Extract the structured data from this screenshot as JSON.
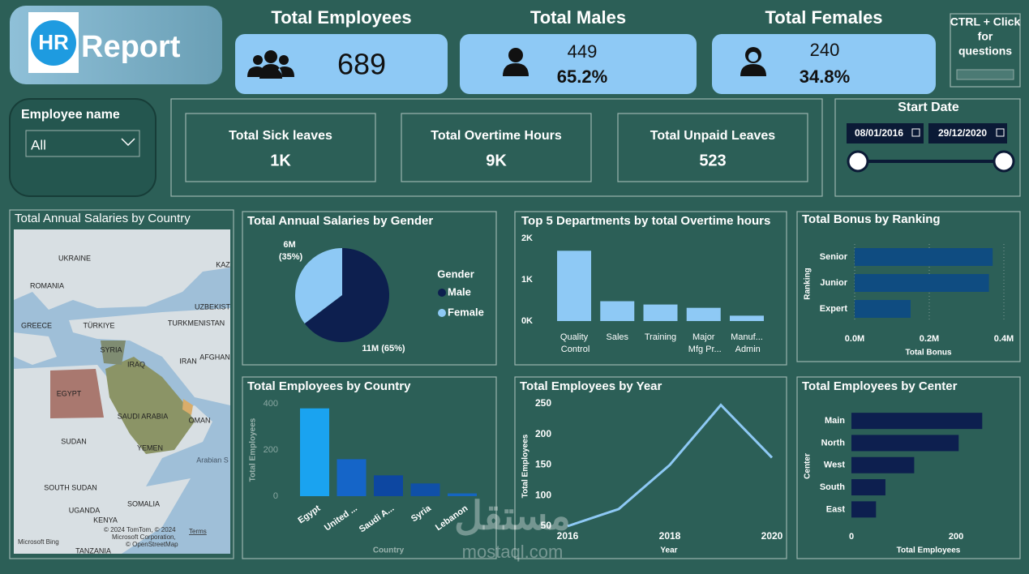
{
  "header": {
    "logo": "HR",
    "title": "Report"
  },
  "kpis": [
    {
      "title": "Total Employees",
      "value": 689
    },
    {
      "title": "Total Males",
      "value": 449,
      "percent": "65.2%"
    },
    {
      "title": "Total Females",
      "value": 240,
      "percent": "34.8%"
    }
  ],
  "help_button": {
    "lines": [
      "CTRL + Click",
      "for",
      "questions"
    ]
  },
  "slicer": {
    "label": "Employee name",
    "value": "All"
  },
  "cards": [
    {
      "title": "Total Sick leaves",
      "value": "1K"
    },
    {
      "title": "Total Overtime Hours",
      "value": "9K"
    },
    {
      "title": "Total Unpaid Leaves",
      "value": 523
    }
  ],
  "date_range": {
    "label": "Start Date",
    "start": "08/01/2016",
    "end": "29/12/2020"
  },
  "map": {
    "title": "Total Annual Salaries by Country",
    "labels": [
      "UKRAINE",
      "ROMANIA",
      "KAZ",
      "UZBEKIST",
      "GREECE",
      "TÜRKIYE",
      "TURKMENISTAN",
      "SYRIA",
      "IRAQ",
      "IRAN",
      "AFGHAN",
      "EGYPT",
      "SAUDI ARABIA",
      "OMAN",
      "SUDAN",
      "YEMEN",
      "Arabian S",
      "SOUTH SUDAN",
      "SOMALIA",
      "UGANDA",
      "KENYA",
      "TANZANIA"
    ],
    "credits": [
      "© 2024 TomTom, © 2024",
      "Microsoft Corporation,",
      "© OpenStreetMap"
    ],
    "terms": "Terms",
    "provider": "Microsoft Bing"
  },
  "watermark": {
    "arabic": "مستقل",
    "latin": "mostaql.com"
  },
  "chart_data": [
    {
      "type": "pie",
      "title": "Total Annual Salaries by Gender",
      "legend_title": "Gender",
      "categories": [
        "Male",
        "Female"
      ],
      "values": [
        11,
        6
      ],
      "value_labels": [
        "11M (65%)",
        "6M (35%)"
      ],
      "colors": [
        "#0d1f4f",
        "#8ec9f5"
      ]
    },
    {
      "type": "bar",
      "title": "Top 5 Departments by total Overtime hours",
      "categories": [
        "Quality Control",
        "Sales",
        "Training",
        "Major Mfg Pr...",
        "Manuf... Admin"
      ],
      "values": [
        1700,
        480,
        400,
        320,
        130
      ],
      "color": "#8ec9f5",
      "ylim": [
        0,
        2000
      ],
      "yticks": [
        {
          "value": 0,
          "label": "0K"
        },
        {
          "value": 1000,
          "label": "1K"
        },
        {
          "value": 2000,
          "label": "2K"
        }
      ]
    },
    {
      "type": "hbar",
      "title": "Total Bonus by Ranking",
      "xlabel": "Total Bonus",
      "ylabel": "Ranking",
      "categories": [
        "Senior",
        "Junior",
        "Expert"
      ],
      "values": [
        0.37,
        0.36,
        0.15
      ],
      "color": "#0f4c81",
      "xlim": [
        0,
        0.4
      ],
      "xticks": [
        {
          "value": 0,
          "label": "0.0M"
        },
        {
          "value": 0.2,
          "label": "0.2M"
        },
        {
          "value": 0.4,
          "label": "0.4M"
        }
      ],
      "grid": true
    },
    {
      "type": "bar",
      "title": "Total Employees by Country",
      "xlabel": "Country",
      "ylabel": "Total Employees",
      "categories": [
        "Egypt",
        "United ...",
        "Saudi A...",
        "Syria",
        "Lebanon"
      ],
      "values": [
        380,
        160,
        90,
        55,
        12
      ],
      "colors": [
        "#1aa3f0",
        "#1565c8",
        "#0d47a1",
        "#1050a8",
        "#1565c0"
      ],
      "ylim": [
        0,
        400
      ],
      "yticks": [
        0,
        200,
        400
      ]
    },
    {
      "type": "line",
      "title": "Total Employees by Year",
      "xlabel": "Year",
      "ylabel": "Total Employees",
      "x": [
        2016,
        2017,
        2018,
        2019,
        2020
      ],
      "values": [
        50,
        78,
        150,
        248,
        162
      ],
      "color": "#8ec9f5",
      "xlim": [
        2016,
        2020
      ],
      "xticks": [
        2016,
        2018,
        2020
      ],
      "ylim": [
        50,
        250
      ],
      "yticks": [
        50,
        100,
        150,
        200,
        250
      ]
    },
    {
      "type": "hbar",
      "title": "Total Employees by Center",
      "xlabel": "Total Employees",
      "ylabel": "Center",
      "categories": [
        "Main",
        "North",
        "West",
        "South",
        "East"
      ],
      "values": [
        250,
        205,
        120,
        65,
        47
      ],
      "color": "#0d1f4f",
      "xlim": [
        0,
        310
      ],
      "xticks": [
        0,
        200
      ]
    }
  ]
}
